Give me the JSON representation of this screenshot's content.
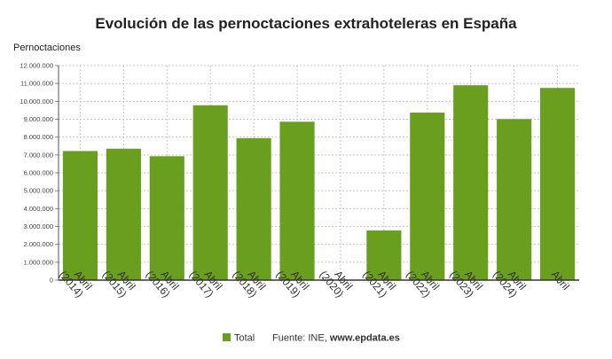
{
  "chart_data": {
    "type": "bar",
    "title": "Evolución de las pernoctaciones extrahoteleras en España",
    "ylabel": "Pernoctaciones",
    "xlabel": "",
    "categories": [
      [
        "Abril",
        "(2014)"
      ],
      [
        "Abril",
        "(2015)"
      ],
      [
        "Abril",
        "(2016)"
      ],
      [
        "Abril",
        "(2017)"
      ],
      [
        "Abril",
        "(2018)"
      ],
      [
        "Abril",
        "(2019)"
      ],
      [
        "Abril",
        "(2020)"
      ],
      [
        "Abril",
        "(2021)"
      ],
      [
        "Abril",
        "(2022)"
      ],
      [
        "Abril",
        "(2023)"
      ],
      [
        "Abril",
        "(2024)"
      ],
      [
        "Abril",
        ""
      ]
    ],
    "series": [
      {
        "name": "Total",
        "color": "#6a9e1f",
        "values": [
          7220000,
          7350000,
          6930000,
          9780000,
          7940000,
          8860000,
          0,
          2780000,
          9370000,
          10900000,
          9010000,
          10750000
        ]
      }
    ],
    "ylim": [
      0,
      12000000
    ],
    "yticks": [
      "0",
      "1.000.000",
      "2.000.000",
      "3.000.000",
      "4.000.000",
      "5.000.000",
      "6.000.000",
      "7.000.000",
      "8.000.000",
      "9.000.000",
      "10.000.000",
      "11.000.000",
      "12.000.000"
    ],
    "grid": true,
    "legend_position": "bottom"
  },
  "footer": {
    "source_prefix": "Fuente: INE, ",
    "source_site": "www.epdata.es"
  }
}
